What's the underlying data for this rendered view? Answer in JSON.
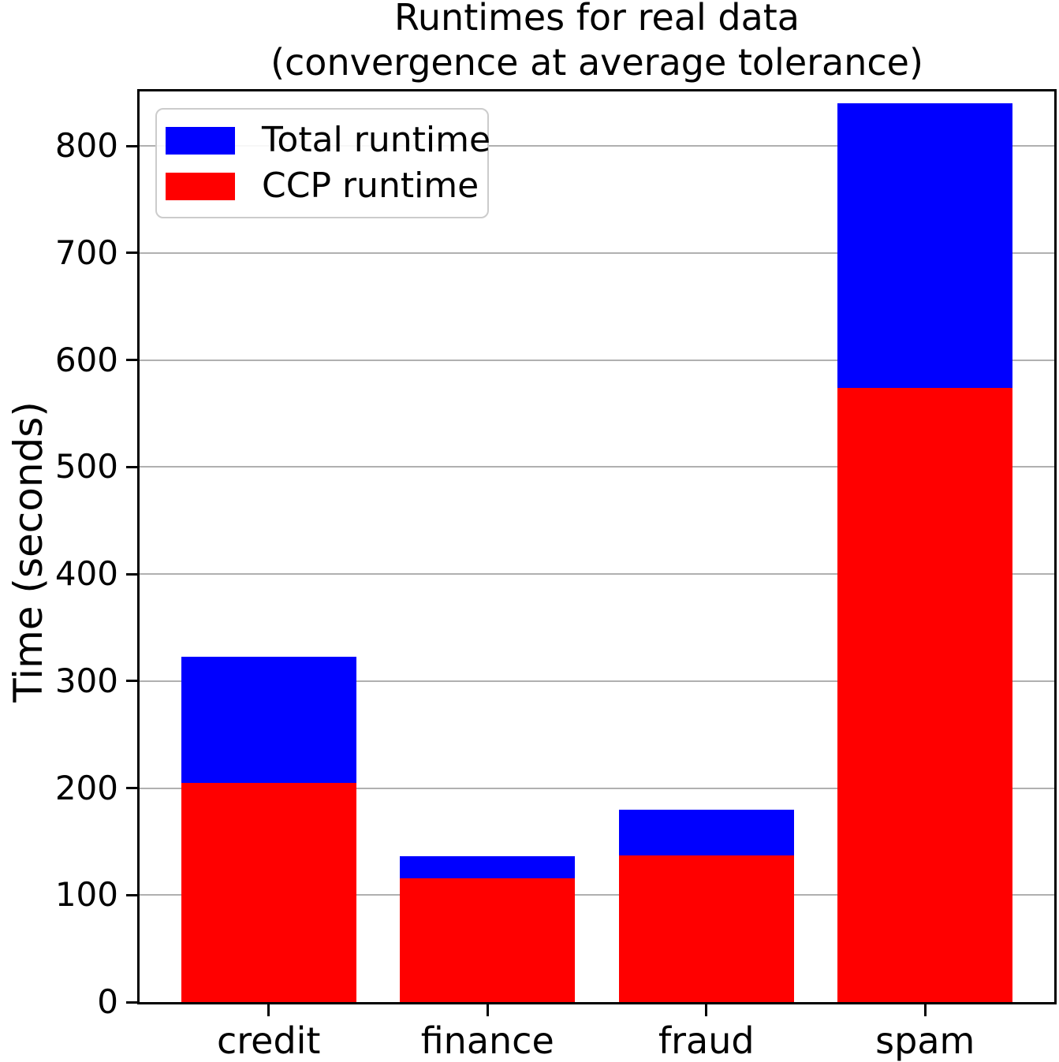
{
  "chart_data": {
    "type": "bar",
    "bar_style": "overlaid",
    "title": "Runtimes for real data\n(convergence at average tolerance)",
    "title_lines": [
      "Runtimes for real data",
      "(convergence at average tolerance)"
    ],
    "ylabel": "Time (seconds)",
    "xlabel": "",
    "categories": [
      "credit",
      "finance",
      "fraud",
      "spam"
    ],
    "series": [
      {
        "name": "Total runtime",
        "color": "#0000ff",
        "values": [
          323,
          136,
          180,
          840
        ]
      },
      {
        "name": "CCP runtime",
        "color": "#ff0000",
        "values": [
          205,
          116,
          137,
          574
        ]
      }
    ],
    "ylim": [
      0,
      851
    ],
    "yticks": [
      0,
      100,
      200,
      300,
      400,
      500,
      600,
      700,
      800
    ],
    "xlim": [
      -0.59,
      3.59
    ],
    "bar_width": 0.8,
    "grid": "horizontal-y",
    "grid_color": "#b0b0b0",
    "axis_color": "#000000",
    "background_color": "#ffffff",
    "legend": {
      "position": "upper-left",
      "border_color": "#cccccc",
      "entries": [
        "Total runtime",
        "CCP runtime"
      ]
    }
  }
}
